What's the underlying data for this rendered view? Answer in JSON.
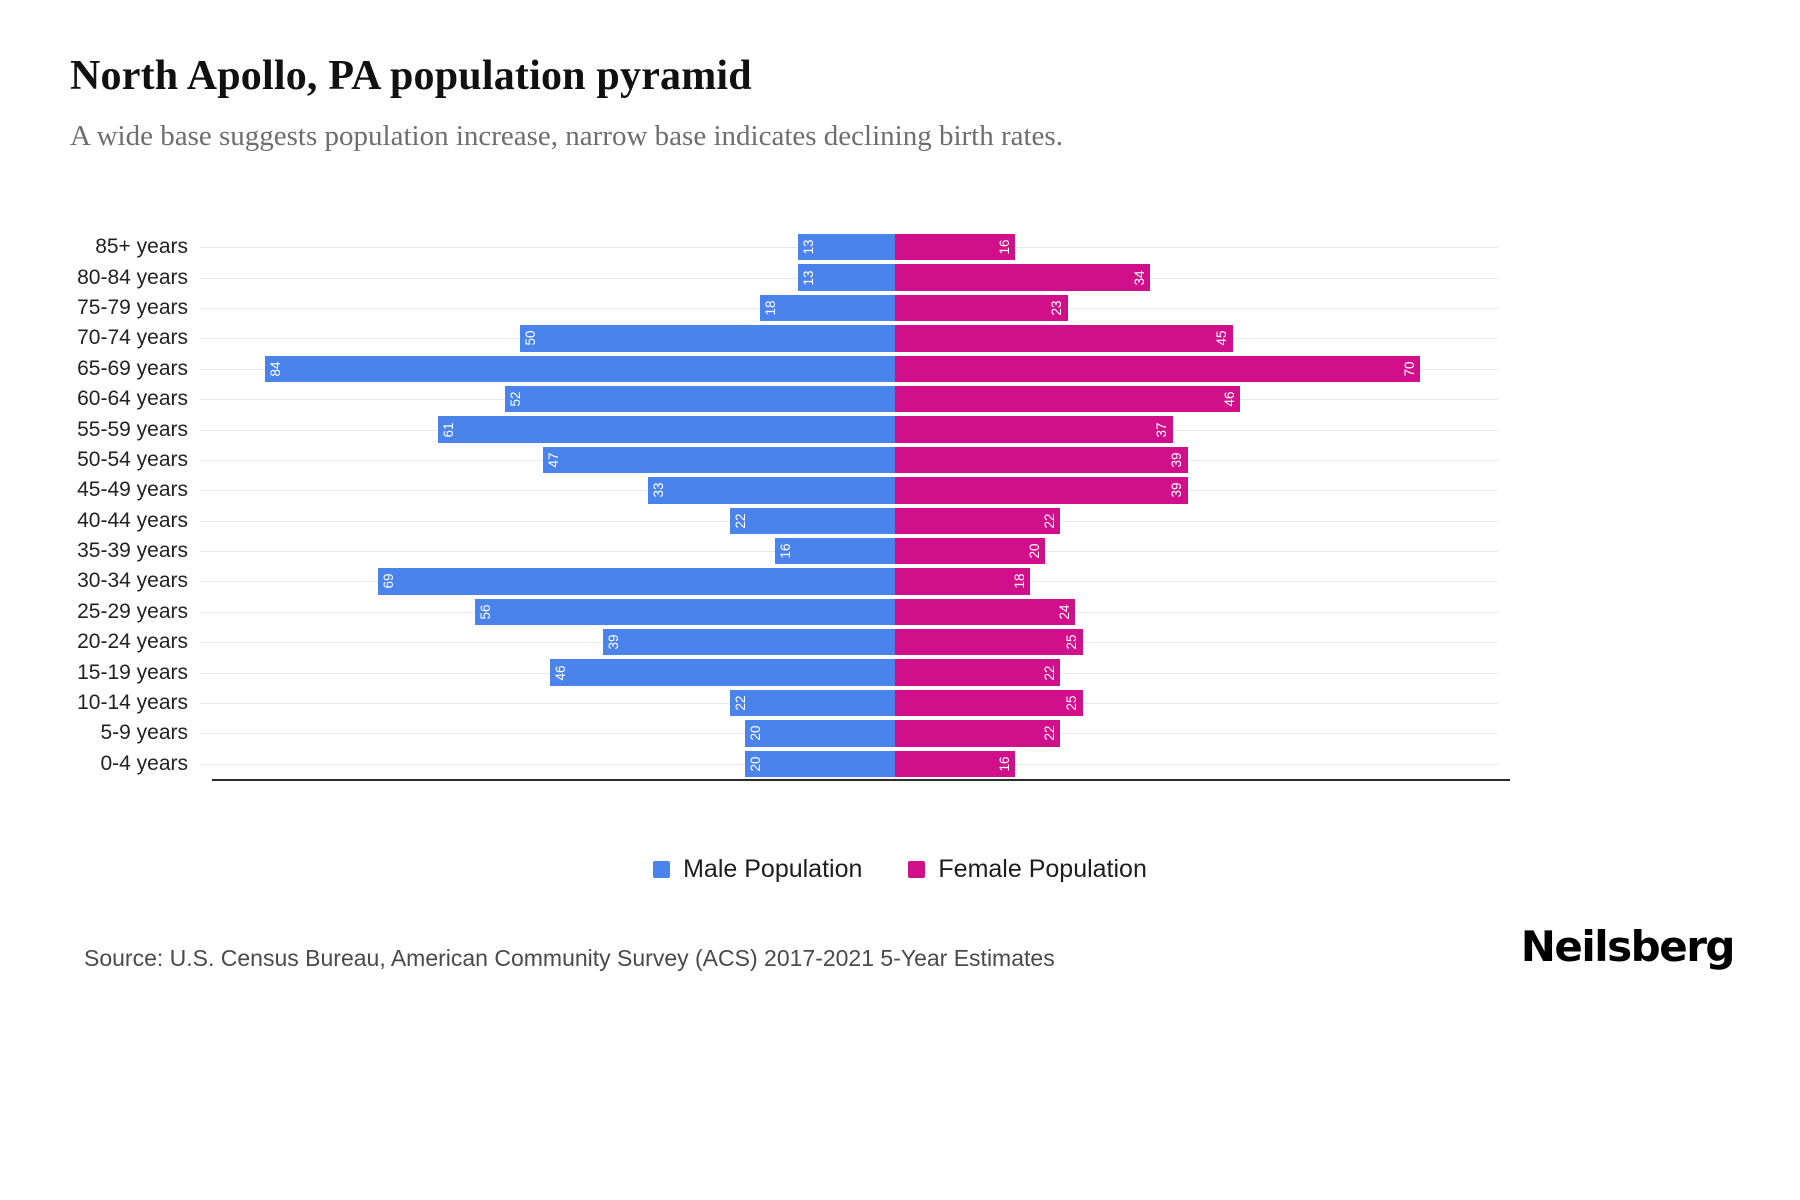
{
  "title": "North Apollo, PA population pyramid",
  "subtitle": "A wide base suggests population increase, narrow base indicates declining birth rates.",
  "source": "Source: U.S. Census Bureau, American Community Survey (ACS) 2017-2021 5-Year Estimates",
  "brand": "Neilsberg",
  "legend": {
    "male": "Male Population",
    "female": "Female Population"
  },
  "colors": {
    "male": "#4b83ec",
    "female": "#d20f8b",
    "gridline": "#e9e9e9",
    "axis": "#2b2b2b"
  },
  "chart_data": {
    "type": "bar",
    "variant": "population-pyramid",
    "orientation": "horizontal",
    "title": "North Apollo, PA population pyramid",
    "categories": [
      "85+ years",
      "80-84 years",
      "75-79 years",
      "70-74 years",
      "65-69 years",
      "60-64 years",
      "55-59 years",
      "50-54 years",
      "45-49 years",
      "40-44 years",
      "35-39 years",
      "30-34 years",
      "25-29 years",
      "20-24 years",
      "15-19 years",
      "10-14 years",
      "5-9 years",
      "0-4 years"
    ],
    "series": [
      {
        "name": "Male Population",
        "direction": "left",
        "values": [
          13,
          13,
          18,
          50,
          84,
          52,
          61,
          47,
          33,
          22,
          16,
          69,
          56,
          39,
          46,
          22,
          20,
          20
        ]
      },
      {
        "name": "Female Population",
        "direction": "right",
        "values": [
          16,
          34,
          23,
          45,
          70,
          46,
          37,
          39,
          39,
          22,
          20,
          18,
          24,
          25,
          22,
          25,
          22,
          16
        ]
      }
    ],
    "value_labels": "inside-end, rotated 90",
    "grid": "horizontal row lines",
    "legend_position": "bottom-center",
    "xlim_left": [
      0,
      90
    ],
    "xlim_right": [
      0,
      78
    ]
  }
}
